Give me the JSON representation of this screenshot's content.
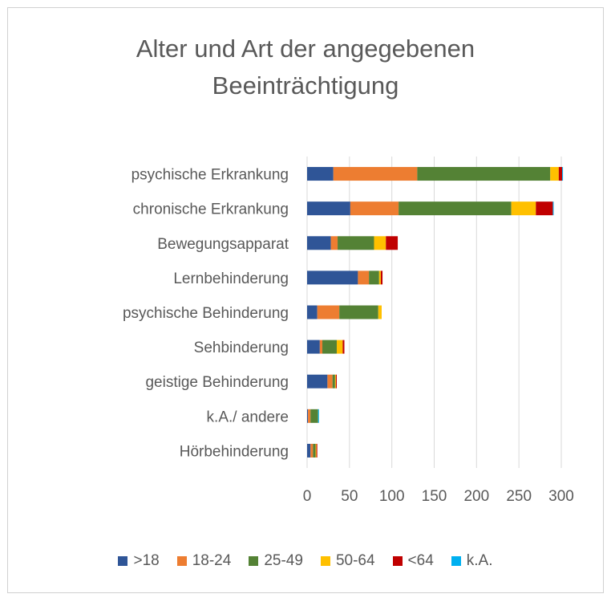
{
  "chart_data": {
    "type": "bar",
    "orientation": "horizontal",
    "stacked": true,
    "title": "Alter und Art der angegebenen Beeinträchtigung",
    "categories": [
      "psychische Erkrankung",
      "chronische Erkrankung",
      "Bewegungsapparat",
      "Lernbehinderung",
      "psychische Behinderung",
      "Sehbinderung",
      "geistige Behinderung",
      "k.A./ andere",
      "Hörbehinderung"
    ],
    "series": [
      {
        "name": ">18",
        "color": "#2F5597",
        "values": [
          31,
          51,
          28,
          60,
          12,
          15,
          24,
          1,
          4
        ]
      },
      {
        "name": "18-24",
        "color": "#ED7D31",
        "values": [
          99,
          57,
          8,
          13,
          26,
          3,
          6,
          3,
          3
        ]
      },
      {
        "name": "25-49",
        "color": "#548235",
        "values": [
          157,
          133,
          43,
          12,
          46,
          17,
          3,
          9,
          3
        ]
      },
      {
        "name": "50-64",
        "color": "#FFC000",
        "values": [
          10,
          29,
          14,
          2,
          4,
          7,
          1,
          0,
          1
        ]
      },
      {
        "name": "<64",
        "color": "#C00000",
        "values": [
          4,
          20,
          14,
          2,
          0,
          2,
          1,
          0,
          1
        ]
      },
      {
        "name": "k.A.",
        "color": "#00B0F0",
        "values": [
          1,
          1,
          0,
          0,
          0,
          0,
          0,
          1,
          0
        ]
      }
    ],
    "xlim": [
      0,
      300
    ],
    "xticks": [
      0,
      50,
      100,
      150,
      200,
      250,
      300
    ],
    "grid": true,
    "legend": "bottom"
  }
}
